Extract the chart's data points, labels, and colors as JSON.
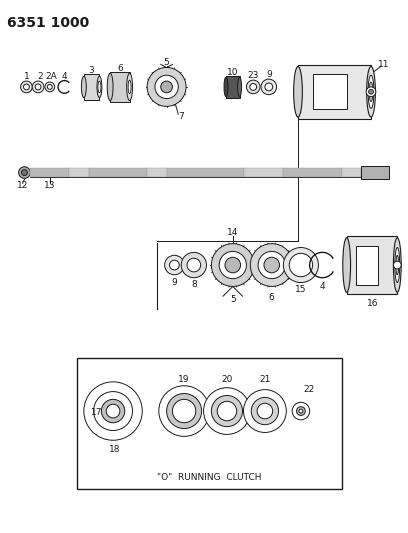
{
  "title": "6351 1000",
  "bg_color": "#ffffff",
  "line_color": "#1a1a1a",
  "title_fontsize": 10,
  "label_fontsize": 6.5,
  "figsize": [
    4.08,
    5.33
  ],
  "dpi": 100,
  "inset_label": "\"O\"  RUNNING  CLUTCH"
}
